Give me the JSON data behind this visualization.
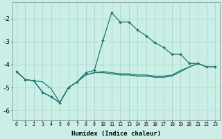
{
  "xlabel": "Humidex (Indice chaleur)",
  "bg_color": "#cceee8",
  "grid_color": "#aaddcc",
  "line_color": "#1a7a6e",
  "xlim": [
    -0.5,
    23.5
  ],
  "ylim": [
    -6.4,
    -1.3
  ],
  "yticks": [
    -6,
    -5,
    -4,
    -3,
    -2
  ],
  "xticks": [
    0,
    1,
    2,
    3,
    4,
    5,
    6,
    7,
    8,
    9,
    10,
    11,
    12,
    13,
    14,
    15,
    16,
    17,
    18,
    19,
    20,
    21,
    22,
    23
  ],
  "line1_x": [
    0,
    1,
    2,
    3,
    4,
    5,
    6,
    7,
    8,
    9,
    10,
    11,
    12,
    13,
    14,
    15,
    16,
    17,
    18,
    19,
    20,
    21,
    22,
    23
  ],
  "line1_y": [
    -4.3,
    -4.65,
    -4.7,
    -5.2,
    -5.4,
    -5.65,
    -5.0,
    -4.75,
    -4.35,
    -4.25,
    -2.95,
    -1.75,
    -2.15,
    -2.15,
    -2.5,
    -2.75,
    -3.05,
    -3.25,
    -3.55,
    -3.55,
    -3.95,
    -3.95,
    -4.1,
    -4.1
  ],
  "line2_x": [
    0,
    1,
    2,
    3,
    4,
    5,
    6,
    7,
    8,
    9,
    10,
    11,
    12,
    13,
    14,
    15,
    16,
    17,
    18,
    19,
    20,
    21,
    22,
    23
  ],
  "line2_y": [
    -4.3,
    -4.65,
    -4.7,
    -4.75,
    -5.05,
    -5.65,
    -5.0,
    -4.75,
    -4.45,
    -4.35,
    -4.3,
    -4.35,
    -4.4,
    -4.4,
    -4.45,
    -4.45,
    -4.5,
    -4.5,
    -4.45,
    -4.25,
    -4.1,
    -3.95,
    -4.1,
    -4.1
  ],
  "line3_x": [
    0,
    1,
    2,
    3,
    4,
    5,
    6,
    7,
    8,
    9,
    10,
    11,
    12,
    13,
    14,
    15,
    16,
    17,
    18,
    19,
    20,
    21,
    22,
    23
  ],
  "line3_y": [
    -4.3,
    -4.65,
    -4.7,
    -5.2,
    -5.4,
    -5.65,
    -5.0,
    -4.75,
    -4.45,
    -4.35,
    -4.35,
    -4.4,
    -4.45,
    -4.45,
    -4.5,
    -4.5,
    -4.55,
    -4.55,
    -4.5,
    -4.3,
    -4.1,
    -3.95,
    -4.1,
    -4.1
  ]
}
